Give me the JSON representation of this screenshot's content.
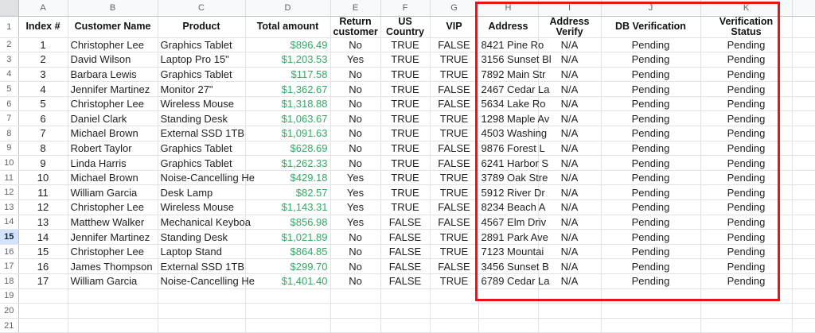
{
  "sheet": {
    "column_letters": [
      "A",
      "B",
      "C",
      "D",
      "E",
      "F",
      "G",
      "H",
      "I",
      "J",
      "K"
    ],
    "header_row_number": "1",
    "header_row": [
      "Index #",
      "Customer Name",
      "Product",
      "Total amount",
      "Return customer",
      "US Country",
      "VIP",
      "Address",
      "Address Verify",
      "DB Verification",
      "Verification Status"
    ],
    "rows": [
      {
        "n": "2",
        "cells": [
          "1",
          "Christopher Lee",
          "Graphics Tablet",
          "$896.49",
          "No",
          "TRUE",
          "FALSE",
          "8421 Pine Ro",
          "N/A",
          "Pending",
          "Pending"
        ]
      },
      {
        "n": "3",
        "cells": [
          "2",
          "David Wilson",
          "Laptop Pro 15\"",
          "$1,203.53",
          "Yes",
          "TRUE",
          "TRUE",
          "3156 Sunset Bl",
          "N/A",
          "Pending",
          "Pending"
        ]
      },
      {
        "n": "4",
        "cells": [
          "3",
          "Barbara Lewis",
          "Graphics Tablet",
          "$117.58",
          "No",
          "TRUE",
          "TRUE",
          "7892 Main Str",
          "N/A",
          "Pending",
          "Pending"
        ]
      },
      {
        "n": "5",
        "cells": [
          "4",
          "Jennifer Martinez",
          "Monitor 27\"",
          "$1,362.67",
          "No",
          "TRUE",
          "FALSE",
          "2467 Cedar La",
          "N/A",
          "Pending",
          "Pending"
        ]
      },
      {
        "n": "6",
        "cells": [
          "5",
          "Christopher Lee",
          "Wireless Mouse",
          "$1,318.88",
          "No",
          "TRUE",
          "FALSE",
          "5634 Lake Ro",
          "N/A",
          "Pending",
          "Pending"
        ]
      },
      {
        "n": "7",
        "cells": [
          "6",
          "Daniel Clark",
          "Standing Desk",
          "$1,063.67",
          "No",
          "TRUE",
          "TRUE",
          "1298 Maple Av",
          "N/A",
          "Pending",
          "Pending"
        ]
      },
      {
        "n": "8",
        "cells": [
          "7",
          "Michael Brown",
          "External SSD 1TB",
          "$1,091.63",
          "No",
          "TRUE",
          "TRUE",
          "4503 Washing",
          "N/A",
          "Pending",
          "Pending"
        ]
      },
      {
        "n": "9",
        "cells": [
          "8",
          "Robert Taylor",
          "Graphics Tablet",
          "$628.69",
          "No",
          "TRUE",
          "FALSE",
          "9876 Forest L",
          "N/A",
          "Pending",
          "Pending"
        ]
      },
      {
        "n": "10",
        "cells": [
          "9",
          "Linda Harris",
          "Graphics Tablet",
          "$1,262.33",
          "No",
          "TRUE",
          "FALSE",
          "6241 Harbor S",
          "N/A",
          "Pending",
          "Pending"
        ]
      },
      {
        "n": "11",
        "cells": [
          "10",
          "Michael Brown",
          "Noise-Cancelling He",
          "$429.18",
          "Yes",
          "TRUE",
          "TRUE",
          "3789 Oak Stre",
          "N/A",
          "Pending",
          "Pending"
        ]
      },
      {
        "n": "12",
        "cells": [
          "11",
          "William Garcia",
          "Desk Lamp",
          "$82.57",
          "Yes",
          "TRUE",
          "TRUE",
          "5912 River Dr",
          "N/A",
          "Pending",
          "Pending"
        ]
      },
      {
        "n": "13",
        "cells": [
          "12",
          "Christopher Lee",
          "Wireless Mouse",
          "$1,143.31",
          "Yes",
          "TRUE",
          "FALSE",
          "8234 Beach A",
          "N/A",
          "Pending",
          "Pending"
        ]
      },
      {
        "n": "14",
        "cells": [
          "13",
          "Matthew Walker",
          "Mechanical Keyboa",
          "$856.98",
          "Yes",
          "FALSE",
          "FALSE",
          "4567 Elm Driv",
          "N/A",
          "Pending",
          "Pending"
        ]
      },
      {
        "n": "15",
        "cells": [
          "14",
          "Jennifer Martinez",
          "Standing Desk",
          "$1,021.89",
          "No",
          "FALSE",
          "TRUE",
          "2891 Park Ave",
          "N/A",
          "Pending",
          "Pending"
        ]
      },
      {
        "n": "16",
        "cells": [
          "15",
          "Christopher Lee",
          "Laptop Stand",
          "$864.85",
          "No",
          "FALSE",
          "TRUE",
          "7123 Mountai",
          "N/A",
          "Pending",
          "Pending"
        ]
      },
      {
        "n": "17",
        "cells": [
          "16",
          "James Thompson",
          "External SSD 1TB",
          "$299.70",
          "No",
          "FALSE",
          "FALSE",
          "3456 Sunset B",
          "N/A",
          "Pending",
          "Pending"
        ]
      },
      {
        "n": "18",
        "cells": [
          "17",
          "William Garcia",
          "Noise-Cancelling He",
          "$1,401.40",
          "No",
          "FALSE",
          "TRUE",
          "6789 Cedar La",
          "N/A",
          "Pending",
          "Pending"
        ]
      }
    ],
    "empty_row_numbers": [
      "19",
      "20",
      "21"
    ],
    "selected_row_number": "15"
  },
  "annotation": {
    "type": "red-rectangle",
    "enclosed_columns": "H-K"
  },
  "colors": {
    "amount_green": "#34a865",
    "annotation_red": "#ee1111",
    "header_strip_bg": "#f8f9fa",
    "selected_row_header_bg": "#d3e3fd",
    "gridline": "#e2e3e5"
  }
}
